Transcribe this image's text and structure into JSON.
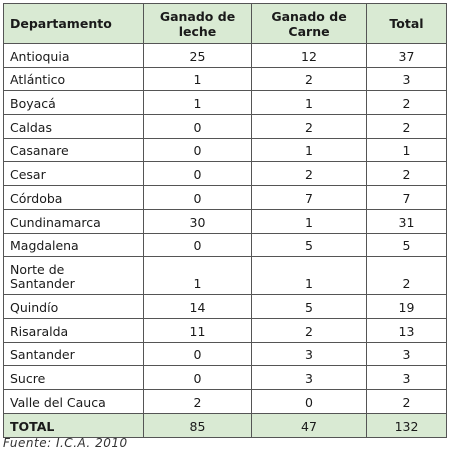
{
  "table": {
    "headers": {
      "departamento": "Departamento",
      "leche_line1": "Ganado de",
      "leche_line2": "leche",
      "carne_line1": "Ganado de",
      "carne_line2": "Carne",
      "total": "Total"
    },
    "rows": [
      {
        "dep": "Antioquia",
        "leche": "25",
        "carne": "12",
        "total": "37"
      },
      {
        "dep": "Atlántico",
        "leche": "1",
        "carne": "2",
        "total": "3"
      },
      {
        "dep": "Boyacá",
        "leche": "1",
        "carne": "1",
        "total": "2"
      },
      {
        "dep": "Caldas",
        "leche": "0",
        "carne": "2",
        "total": "2"
      },
      {
        "dep": "Casanare",
        "leche": "0",
        "carne": "1",
        "total": "1"
      },
      {
        "dep": "Cesar",
        "leche": "0",
        "carne": "2",
        "total": "2"
      },
      {
        "dep": "Córdoba",
        "leche": "0",
        "carne": "7",
        "total": "7"
      },
      {
        "dep": "Cundinamarca",
        "leche": "30",
        "carne": "1",
        "total": "31"
      },
      {
        "dep": "Magdalena",
        "leche": "0",
        "carne": "5",
        "total": "5"
      },
      {
        "dep_line1": "Norte de",
        "dep_line2": "Santander",
        "leche": "1",
        "carne": "1",
        "total": "2"
      },
      {
        "dep": "Quindío",
        "leche": "14",
        "carne": "5",
        "total": "19"
      },
      {
        "dep": "Risaralda",
        "leche": "11",
        "carne": "2",
        "total": "13"
      },
      {
        "dep": "Santander",
        "leche": "0",
        "carne": "3",
        "total": "3"
      },
      {
        "dep": "Sucre",
        "leche": "0",
        "carne": "3",
        "total": "3"
      },
      {
        "dep": "Valle del Cauca",
        "leche": "2",
        "carne": "0",
        "total": "2"
      }
    ],
    "totals": {
      "label": "TOTAL",
      "leche": "85",
      "carne": "47",
      "total": "132"
    },
    "header_color": "#d9ead3"
  },
  "source": "Fuente: I.C.A. 2010"
}
